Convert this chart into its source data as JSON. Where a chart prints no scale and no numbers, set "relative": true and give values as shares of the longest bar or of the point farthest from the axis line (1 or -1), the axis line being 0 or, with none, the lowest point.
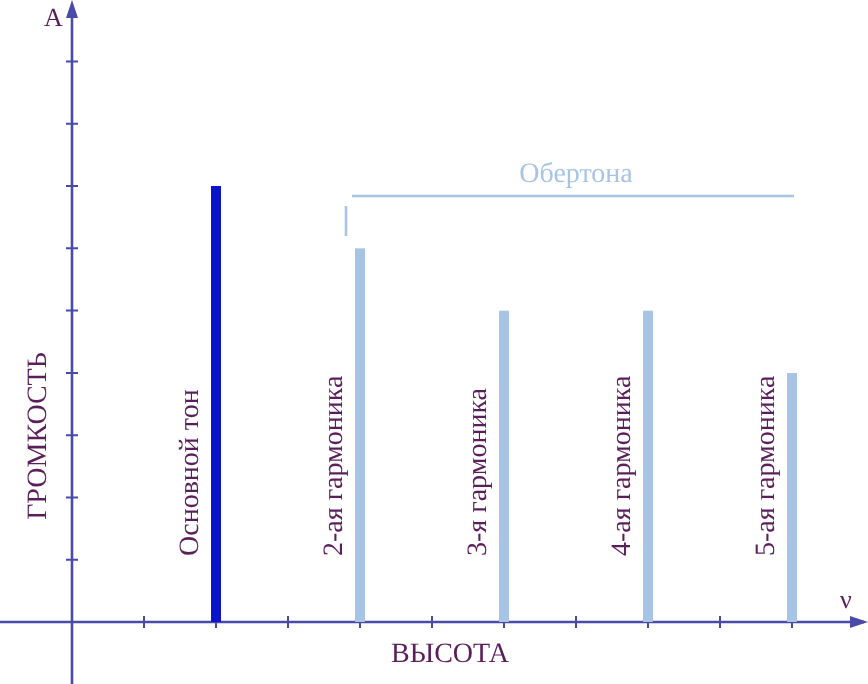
{
  "chart_data": {
    "type": "bar",
    "relative": true,
    "xlabel": "ВЫСОТА",
    "ylabel": "ГРОМКОСТЬ",
    "categories": [
      "Основной тон",
      "2-ая гармоника",
      "3-я гармоника",
      "4-ая гармоника",
      "5-ая гармоника"
    ],
    "values": [
      1,
      0.857,
      0.714,
      0.714,
      0.571
    ],
    "colors": [
      "#0a14c8",
      "#a8c4e4",
      "#a8c4e4",
      "#a8c4e4",
      "#a8c4e4"
    ],
    "annotations": [
      "A",
      "ν",
      "Обертона"
    ]
  }
}
